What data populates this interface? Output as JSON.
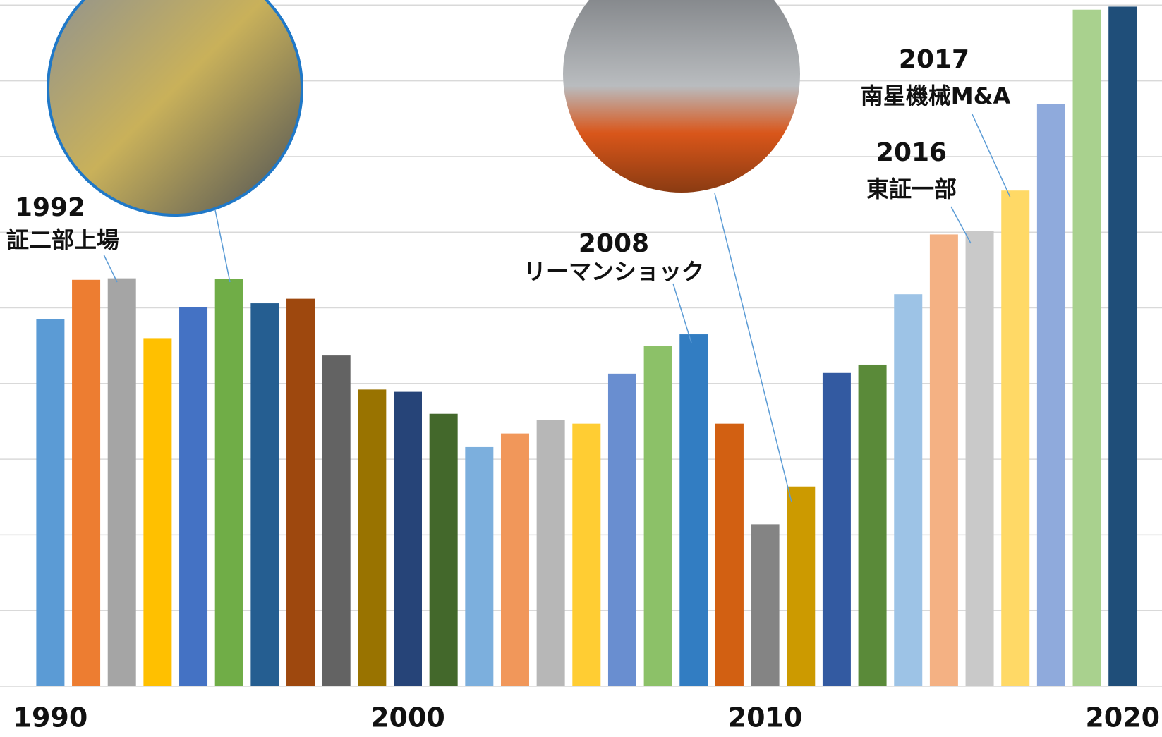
{
  "chart_data": {
    "type": "bar",
    "categories": [
      "1990",
      null,
      null,
      null,
      null,
      null,
      null,
      null,
      null,
      null,
      "2000",
      null,
      null,
      null,
      null,
      null,
      null,
      null,
      null,
      null,
      "2010",
      null,
      null,
      null,
      null,
      null,
      null,
      null,
      null,
      null,
      "2020"
    ],
    "values": [
      4.85,
      5.37,
      5.39,
      4.6,
      5.01,
      5.38,
      5.06,
      5.12,
      4.37,
      3.92,
      3.89,
      3.6,
      3.16,
      3.34,
      3.52,
      3.47,
      4.13,
      4.5,
      4.65,
      3.47,
      2.14,
      2.64,
      4.14,
      4.25,
      5.18,
      5.97,
      6.02,
      6.55,
      7.69,
      8.94,
      8.98
    ],
    "colors": [
      "#5b9bd5",
      "#ed7d31",
      "#a5a5a5",
      "#ffc000",
      "#4472c4",
      "#70ad47",
      "#255e91",
      "#9e480e",
      "#636363",
      "#997300",
      "#264478",
      "#43682b",
      "#7cafdd",
      "#f1975a",
      "#b7b7b7",
      "#ffcd33",
      "#698ed0",
      "#8cc168",
      "#327dc2",
      "#d26012",
      "#848484",
      "#cc9a00",
      "#335aa1",
      "#5a8a39",
      "#9dc3e6",
      "#f4b183",
      "#c9c9c9",
      "#ffd966",
      "#8faadc",
      "#a9d18e",
      "#1f4e79"
    ],
    "ylim": [
      0,
      9
    ],
    "yticks": [
      0,
      1,
      2,
      3,
      4,
      5,
      6,
      7,
      8,
      9
    ],
    "grid": true,
    "annotations": [
      {
        "label": "1992",
        "text": "証二部上場"
      },
      {
        "label": "2008",
        "text": "リーマンショック"
      },
      {
        "label": "2016",
        "text": "東証一部"
      },
      {
        "label": "2017",
        "text": "南星機械M&A"
      }
    ]
  }
}
